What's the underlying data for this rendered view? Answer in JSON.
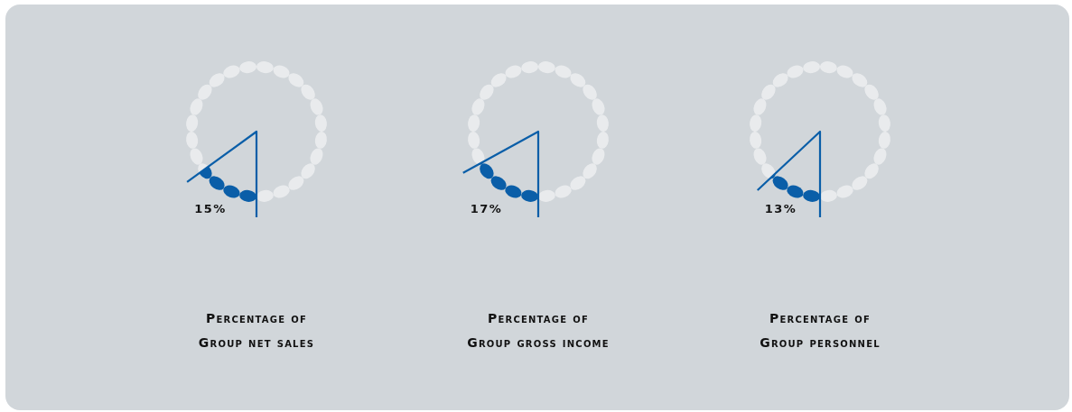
{
  "chart_data": [
    {
      "type": "donut",
      "title": "Percentage of Group net sales",
      "categories": [
        null,
        null
      ],
      "values": [
        15,
        85
      ],
      "colors": [
        "#0a5ea8",
        "#e9ebed"
      ],
      "value_labels": [
        "15%",
        null
      ]
    },
    {
      "type": "donut",
      "title": "Percentage of Group gross income",
      "categories": [
        null,
        null
      ],
      "values": [
        17,
        83
      ],
      "colors": [
        "#0a5ea8",
        "#e9ebed"
      ],
      "value_labels": [
        "17%",
        null
      ]
    },
    {
      "type": "donut",
      "title": "Percentage of Group personnel",
      "categories": [
        null,
        null
      ],
      "values": [
        13,
        87
      ],
      "colors": [
        "#0a5ea8",
        "#e9ebed"
      ],
      "value_labels": [
        "13%",
        null
      ]
    }
  ]
}
